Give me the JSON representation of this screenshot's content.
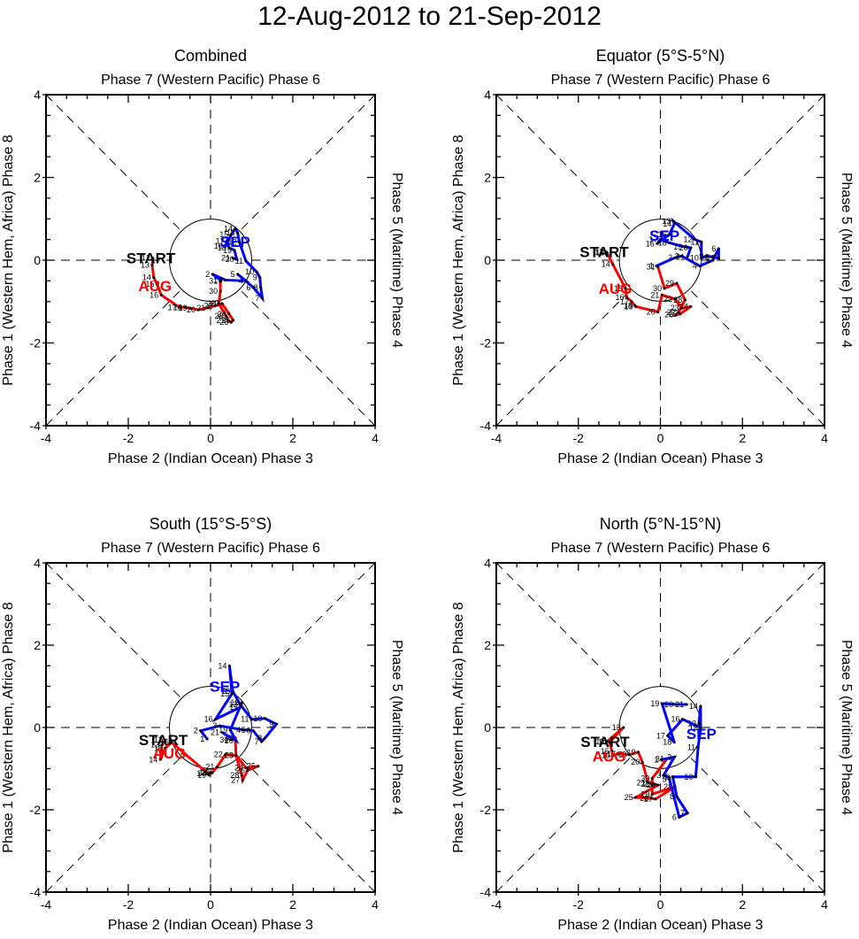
{
  "figure": {
    "title": "12-Aug-2012 to 21-Sep-2012",
    "colors": {
      "aug": "#ff0000",
      "sep": "#0000ff",
      "axis": "#000000"
    }
  },
  "chart_data": [
    {
      "type": "line",
      "title": "Combined",
      "xlabel": "Phase 2 (Indian Ocean) Phase 3",
      "toplabel": "Phase 7 (Western Pacific) Phase 6",
      "ylabel": "Phase 1 (Western Hem, Africa) Phase 8",
      "rightlabel": "Phase 5 (Maritime) Phase 4",
      "xlim": [
        -4,
        4
      ],
      "ylim": [
        -4,
        4
      ],
      "xticks": [
        "-4",
        "-2",
        "0",
        "2",
        "4"
      ],
      "yticks": [
        "-4",
        "-2",
        "0",
        "2",
        "4"
      ],
      "start_label": "START",
      "start_point": [
        -1.4,
        0.05
      ],
      "series": [
        {
          "name": "AUG",
          "color": "#ff0000",
          "days": [
            12,
            13,
            14,
            15,
            16,
            17,
            18,
            19,
            20,
            21,
            22,
            23,
            24,
            25,
            26,
            27,
            28,
            29,
            30,
            31
          ],
          "points": [
            [
              -1.4,
              0.05
            ],
            [
              -1.42,
              -0.12
            ],
            [
              -1.38,
              -0.42
            ],
            [
              -1.3,
              -0.58
            ],
            [
              -1.2,
              -0.84
            ],
            [
              -0.76,
              -1.14
            ],
            [
              -0.62,
              -1.14
            ],
            [
              -0.5,
              -1.16
            ],
            [
              -0.3,
              -1.2
            ],
            [
              -0.06,
              -1.15
            ],
            [
              0.12,
              -1.1
            ],
            [
              0.28,
              -1.05
            ],
            [
              0.45,
              -1.3
            ],
            [
              0.55,
              -1.45
            ],
            [
              0.5,
              -1.5
            ],
            [
              0.42,
              -1.45
            ],
            [
              0.38,
              -1.35
            ],
            [
              0.2,
              -1.05
            ],
            [
              0.24,
              -0.75
            ],
            [
              0.24,
              -0.5
            ]
          ],
          "label_pos": [
            -1.35,
            -0.62
          ]
        },
        {
          "name": "SEP",
          "color": "#0000ff",
          "days": [
            1,
            2,
            3,
            4,
            5,
            6,
            7,
            8,
            9,
            10,
            11,
            12,
            13,
            14,
            15,
            16,
            17,
            18,
            19,
            20,
            21
          ],
          "points": [
            [
              0.24,
              -0.48
            ],
            [
              0.05,
              -0.34
            ],
            [
              0.36,
              -0.48
            ],
            [
              0.86,
              -0.5
            ],
            [
              0.66,
              -0.34
            ],
            [
              1.04,
              -0.66
            ],
            [
              1.26,
              -0.92
            ],
            [
              1.22,
              -0.66
            ],
            [
              1.2,
              -0.42
            ],
            [
              1.12,
              -0.28
            ],
            [
              0.86,
              -0.02
            ],
            [
              0.7,
              0.44
            ],
            [
              0.66,
              0.66
            ],
            [
              0.6,
              0.76
            ],
            [
              0.5,
              0.62
            ],
            [
              0.36,
              0.34
            ],
            [
              0.4,
              0.46
            ],
            [
              0.45,
              0.3
            ],
            [
              0.58,
              0.24
            ],
            [
              0.64,
              0.02
            ],
            [
              0.54,
              0.05
            ]
          ],
          "label_pos": [
            0.6,
            0.45
          ]
        }
      ]
    },
    {
      "type": "line",
      "title": "Equator (5°S-5°N)",
      "xlabel": "Phase 2 (Indian Ocean) Phase 3",
      "toplabel": "Phase 7 (Western Pacific) Phase 6",
      "ylabel": "Phase 1 (Western Hem, Africa) Phase 8",
      "rightlabel": "Phase 5 (Maritime) Phase 4",
      "xlim": [
        -4,
        4
      ],
      "ylim": [
        -4,
        4
      ],
      "xticks": [
        "-4",
        "-2",
        "0",
        "2",
        "4"
      ],
      "yticks": [
        "-4",
        "-2",
        "0",
        "2",
        "4"
      ],
      "start_label": "START",
      "start_point": [
        -1.32,
        0.2
      ],
      "series": [
        {
          "name": "AUG",
          "color": "#ff0000",
          "days": [
            12,
            13,
            14,
            15,
            16,
            17,
            18,
            19,
            20,
            21,
            22,
            23,
            24,
            25,
            26,
            27,
            28,
            29,
            30,
            31
          ],
          "points": [
            [
              -1.32,
              0.2
            ],
            [
              -1.3,
              0.18
            ],
            [
              -1.16,
              -0.1
            ],
            [
              -0.85,
              -0.68
            ],
            [
              -0.82,
              -0.9
            ],
            [
              -0.7,
              -1.0
            ],
            [
              -0.62,
              -1.1
            ],
            [
              -0.6,
              -1.12
            ],
            [
              -0.06,
              -1.25
            ],
            [
              0.04,
              -0.84
            ],
            [
              0.36,
              -0.94
            ],
            [
              0.52,
              -1.16
            ],
            [
              0.74,
              -1.12
            ],
            [
              0.48,
              -1.3
            ],
            [
              0.38,
              -1.32
            ],
            [
              0.44,
              -1.26
            ],
            [
              0.6,
              -0.96
            ],
            [
              0.4,
              -0.56
            ],
            [
              0.1,
              -0.68
            ],
            [
              -0.06,
              -0.16
            ]
          ],
          "label_pos": [
            -1.1,
            -0.68
          ]
        },
        {
          "name": "SEP",
          "color": "#0000ff",
          "days": [
            1,
            2,
            3,
            4,
            5,
            6,
            7,
            8,
            9,
            10,
            11,
            12,
            13,
            14,
            15,
            16,
            17,
            18,
            19,
            20,
            21
          ],
          "points": [
            [
              -0.1,
              -0.14
            ],
            [
              0.36,
              0.06
            ],
            [
              0.52,
              0.1
            ],
            [
              0.96,
              -0.14
            ],
            [
              1.28,
              0.0
            ],
            [
              1.42,
              0.28
            ],
            [
              1.42,
              0.05
            ],
            [
              1.26,
              0.08
            ],
            [
              1.12,
              0.1
            ],
            [
              1.0,
              0.05
            ],
            [
              1.0,
              0.44
            ],
            [
              0.84,
              0.5
            ],
            [
              0.32,
              0.94
            ],
            [
              0.34,
              0.88
            ],
            [
              0.22,
              0.62
            ],
            [
              -0.08,
              0.4
            ],
            [
              0.0,
              0.5
            ],
            [
              0.22,
              0.42
            ],
            [
              0.6,
              0.32
            ],
            [
              0.74,
              0.3
            ],
            [
              0.66,
              0.08
            ]
          ],
          "label_pos": [
            0.1,
            0.6
          ]
        }
      ]
    },
    {
      "type": "line",
      "title": "South (15°S-5°S)",
      "xlabel": "Phase 2 (Indian Ocean) Phase 3",
      "toplabel": "Phase 7 (Western Pacific) Phase 6",
      "ylabel": "Phase 1 (Western Hem, Africa) Phase 8",
      "rightlabel": "Phase 5 (Maritime) Phase 4",
      "xlim": [
        -4,
        4
      ],
      "ylim": [
        -4,
        4
      ],
      "xticks": [
        "-4",
        "-2",
        "0",
        "2",
        "4"
      ],
      "yticks": [
        "-4",
        "-2",
        "0",
        "2",
        "4"
      ],
      "start_label": "START",
      "start_point": [
        -1.1,
        -0.3
      ],
      "series": [
        {
          "name": "AUG",
          "color": "#ff0000",
          "days": [
            12,
            13,
            14,
            15,
            16,
            17,
            18,
            19,
            20,
            21,
            22,
            23,
            24,
            25,
            26,
            27,
            28,
            29,
            30,
            31
          ],
          "points": [
            [
              -1.1,
              -0.3
            ],
            [
              -1.18,
              -0.42
            ],
            [
              -1.22,
              -0.78
            ],
            [
              -1.1,
              -0.5
            ],
            [
              -0.95,
              -0.36
            ],
            [
              -0.06,
              -1.12
            ],
            [
              0.0,
              -1.1
            ],
            [
              -0.04,
              -1.16
            ],
            [
              0.04,
              -1.1
            ],
            [
              0.16,
              -0.96
            ],
            [
              0.36,
              -0.66
            ],
            [
              0.62,
              -0.68
            ],
            [
              0.86,
              -0.98
            ],
            [
              1.16,
              -0.94
            ],
            [
              0.9,
              -1.04
            ],
            [
              0.78,
              -1.28
            ],
            [
              0.76,
              -1.16
            ],
            [
              0.62,
              -0.68
            ],
            [
              0.6,
              -0.26
            ],
            [
              0.5,
              -0.3
            ]
          ],
          "label_pos": [
            -1.0,
            -0.62
          ]
        },
        {
          "name": "SEP",
          "color": "#0000ff",
          "days": [
            1,
            2,
            3,
            4,
            5,
            6,
            7,
            8,
            9,
            10,
            11,
            12,
            13,
            14,
            15,
            16,
            17,
            18,
            19,
            20,
            21
          ],
          "points": [
            [
              -0.08,
              -0.28
            ],
            [
              -0.24,
              -0.08
            ],
            [
              0.22,
              0.04
            ],
            [
              0.8,
              -0.06
            ],
            [
              0.92,
              -0.06
            ],
            [
              1.04,
              -0.08
            ],
            [
              1.24,
              -0.34
            ],
            [
              1.32,
              -0.26
            ],
            [
              1.6,
              0.08
            ],
            [
              1.32,
              0.22
            ],
            [
              1.0,
              0.2
            ],
            [
              0.72,
              0.56
            ],
            [
              0.54,
              0.88
            ],
            [
              0.46,
              1.5
            ],
            [
              0.52,
              0.82
            ],
            [
              0.12,
              0.2
            ],
            [
              0.74,
              0.5
            ],
            [
              0.76,
              0.6
            ],
            [
              0.48,
              -0.06
            ],
            [
              0.62,
              -0.32
            ],
            [
              0.28,
              -0.12
            ]
          ],
          "label_pos": [
            0.35,
            1.0
          ]
        }
      ]
    },
    {
      "type": "line",
      "title": "North (5°N-15°N)",
      "xlabel": "Phase 2 (Indian Ocean) Phase 3",
      "toplabel": "Phase 7 (Western Pacific) Phase 6",
      "ylabel": "Phase 1 (Western Hem, Africa) Phase 8",
      "rightlabel": "Phase 5 (Maritime) Phase 4",
      "xlim": [
        -4,
        4
      ],
      "ylim": [
        -4,
        4
      ],
      "xticks": [
        "-4",
        "-2",
        "0",
        "2",
        "4"
      ],
      "yticks": [
        "-4",
        "-2",
        "0",
        "2",
        "4"
      ],
      "start_label": "START",
      "start_point": [
        -1.3,
        -0.34
      ],
      "series": [
        {
          "name": "AUG",
          "color": "#ff0000",
          "days": [
            12,
            13,
            14,
            15,
            16,
            17,
            18,
            19,
            20,
            21,
            22,
            23,
            24,
            25,
            26,
            27,
            28,
            29,
            30,
            31
          ],
          "points": [
            [
              -1.3,
              -0.34
            ],
            [
              -0.9,
              0.0
            ],
            [
              -1.24,
              -0.36
            ],
            [
              -1.18,
              -0.58
            ],
            [
              -1.16,
              -0.68
            ],
            [
              -1.02,
              -0.64
            ],
            [
              -0.76,
              -0.66
            ],
            [
              -0.54,
              -0.6
            ],
            [
              -0.44,
              -0.84
            ],
            [
              -0.3,
              -1.34
            ],
            [
              -0.2,
              -1.38
            ],
            [
              -0.14,
              -1.38
            ],
            [
              -0.06,
              -1.4
            ],
            [
              -0.6,
              -1.7
            ],
            [
              -0.22,
              -1.72
            ],
            [
              -0.12,
              -1.74
            ],
            [
              0.36,
              -1.44
            ],
            [
              -0.2,
              -1.62
            ],
            [
              -0.2,
              -1.24
            ],
            [
              0.16,
              -0.76
            ]
          ],
          "label_pos": [
            -1.25,
            -0.7
          ]
        },
        {
          "name": "SEP",
          "color": "#0000ff",
          "days": [
            1,
            2,
            3,
            4,
            5,
            6,
            7,
            8,
            9,
            10,
            11,
            12,
            13,
            14,
            15,
            16,
            17,
            18,
            19,
            20,
            21
          ],
          "points": [
            [
              0.02,
              -0.78
            ],
            [
              0.34,
              -0.72
            ],
            [
              0.08,
              -1.16
            ],
            [
              0.22,
              -1.22
            ],
            [
              0.22,
              -1.26
            ],
            [
              0.46,
              -2.18
            ],
            [
              0.66,
              -2.08
            ],
            [
              0.4,
              -1.68
            ],
            [
              0.3,
              -1.2
            ],
            [
              0.86,
              -1.2
            ],
            [
              0.92,
              -0.48
            ],
            [
              0.98,
              0.0
            ],
            [
              0.94,
              0.1
            ],
            [
              0.98,
              0.52
            ],
            [
              0.98,
              0.0
            ],
            [
              0.54,
              0.2
            ],
            [
              0.18,
              -0.2
            ],
            [
              0.34,
              -0.36
            ],
            [
              0.04,
              0.58
            ],
            [
              0.38,
              0.56
            ],
            [
              0.64,
              0.56
            ]
          ],
          "label_pos": [
            1.0,
            -0.15
          ]
        }
      ]
    }
  ]
}
